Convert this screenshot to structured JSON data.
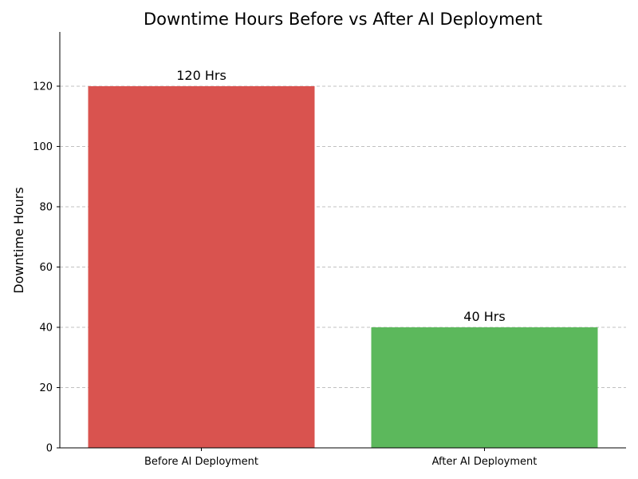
{
  "chart_data": {
    "type": "bar",
    "title": "Downtime Hours Before vs After AI Deployment",
    "xlabel": "",
    "ylabel": "Downtime Hours",
    "categories": [
      "Before AI Deployment",
      "After AI Deployment"
    ],
    "values": [
      120,
      40
    ],
    "data_labels": [
      "120 Hrs",
      "40 Hrs"
    ],
    "colors": [
      "#d9534f",
      "#5cb85c"
    ],
    "ylim": [
      0,
      138
    ],
    "yticks": [
      0,
      20,
      40,
      60,
      80,
      100,
      120
    ],
    "grid": "y-axis dashed",
    "legend": "none"
  }
}
